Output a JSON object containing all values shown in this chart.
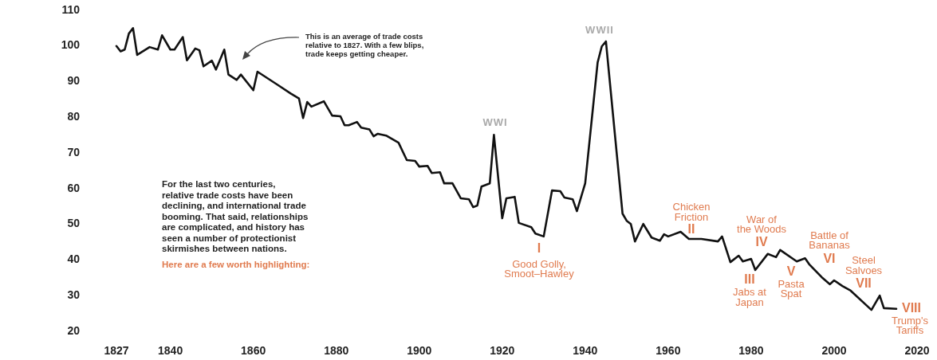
{
  "chart_data": {
    "type": "line",
    "x": [
      1827,
      1828,
      1829,
      1830,
      1831,
      1832,
      1835,
      1837,
      1838,
      1840,
      1841,
      1843,
      1844,
      1846,
      1847,
      1848,
      1850,
      1851,
      1853,
      1854,
      1856,
      1857,
      1860,
      1861,
      1866,
      1869,
      1871,
      1872,
      1873,
      1874,
      1877,
      1879,
      1881,
      1882,
      1883,
      1885,
      1886,
      1888,
      1889,
      1890,
      1892,
      1895,
      1897,
      1899,
      1900,
      1902,
      1903,
      1905,
      1906,
      1908,
      1910,
      1912,
      1913,
      1914,
      1915,
      1917,
      1918,
      1920,
      1921,
      1923,
      1924,
      1927,
      1928,
      1930,
      1932,
      1934,
      1935,
      1937,
      1938,
      1940,
      1943,
      1944,
      1945,
      1949,
      1950,
      1951,
      1952,
      1954,
      1956,
      1958,
      1959,
      1960,
      1963,
      1965,
      1968,
      1972,
      1973,
      1975,
      1977,
      1978,
      1980,
      1981,
      1984,
      1986,
      1987,
      1991,
      1993,
      1994,
      1997,
      1999,
      2000,
      2002,
      2004,
      2009,
      2011,
      2012,
      2015
    ],
    "series": [
      {
        "color": "#111111",
        "values": [
          100,
          98.5,
          99,
          103.5,
          105,
          97.5,
          99.7,
          99,
          103,
          99,
          99,
          102.5,
          96,
          99.3,
          98.8,
          94.3,
          95.9,
          93.4,
          99,
          92,
          90.5,
          92,
          87.6,
          92.8,
          89,
          86.7,
          85.3,
          79.8,
          84.3,
          83,
          84.5,
          80.5,
          80.3,
          77.8,
          77.8,
          78.7,
          77.1,
          76.6,
          74.7,
          75.4,
          74.9,
          72.9,
          68,
          67.8,
          66.2,
          66.4,
          64.4,
          64.6,
          61.5,
          61.5,
          57.3,
          57,
          54.8,
          55.3,
          60.6,
          61.5,
          75.1,
          51.7,
          57.3,
          57.7,
          50.4,
          49.2,
          47.4,
          46.6,
          59.5,
          59.3,
          57.5,
          57,
          53.7,
          61.5,
          95.4,
          99.9,
          101.3,
          53,
          51,
          50.1,
          45.2,
          50.1,
          46.3,
          45.4,
          47.2,
          46.6,
          47.9,
          45.9,
          45.9,
          45.2,
          46.6,
          39.4,
          41.2,
          39.6,
          40.3,
          37.2,
          41.7,
          40.8,
          42.8,
          39.6,
          40.5,
          38.8,
          35.2,
          33.2,
          34.3,
          32.7,
          31.4,
          26,
          30,
          26.5,
          26.3
        ]
      }
    ],
    "xlim": [
      1827,
      2020
    ],
    "ylim": [
      20,
      110
    ],
    "xticks": [
      1827,
      1840,
      1860,
      1880,
      1900,
      1920,
      1940,
      1960,
      1980,
      2000,
      2020
    ],
    "yticks": [
      20,
      30,
      40,
      50,
      60,
      70,
      80,
      90,
      100,
      110
    ],
    "annotations": [
      "WWI",
      "WWII",
      "This is an average of trade costs\nrelative to 1827. With a few blips,\ntrade keeps getting cheaper.",
      "For the last two centuries,\nrelative trade costs have been\ndeclining, and international trade\nbooming. That said, relationships\nare complicated, and history has\nseen a number of protectionist\nskirmishes between nations.",
      "Here are a few worth highlighting:",
      "I",
      "Good Golly,\nSmoot–Hawley",
      "II",
      "Chicken\nFriction",
      "III",
      "Jabs at\nJapan",
      "IV",
      "War of\nthe Woods",
      "V",
      "Pasta\nSpat",
      "VI",
      "Battle of\nBananas",
      "VII",
      "Steel\nSalvoes",
      "VIII",
      "Trump's\nTariffs"
    ]
  }
}
